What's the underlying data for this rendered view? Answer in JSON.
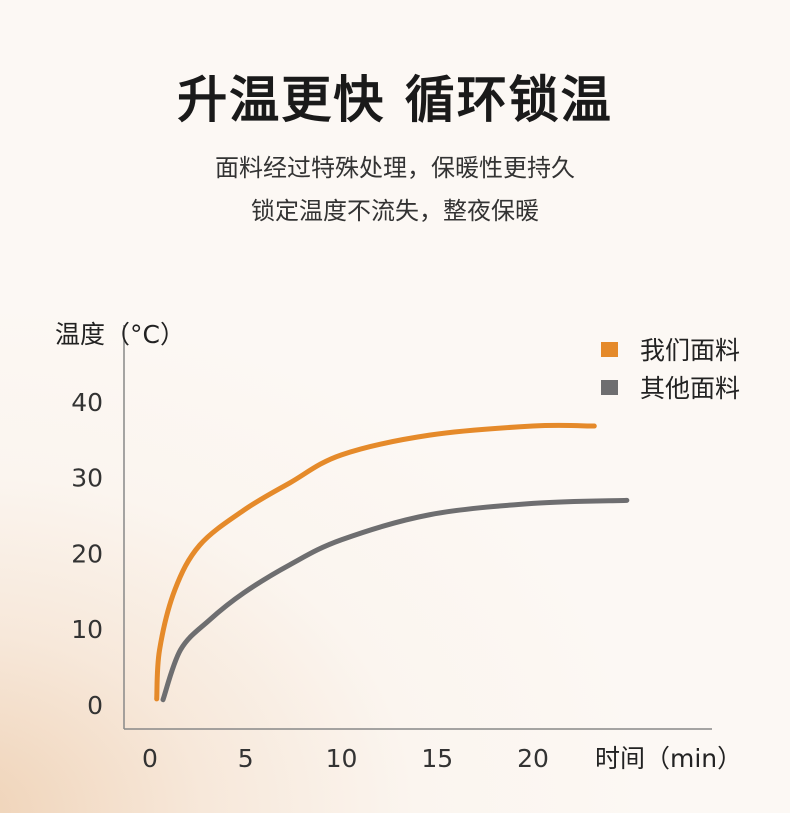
{
  "header": {
    "title": "升温更快 循环锁温",
    "subtitle_lines": [
      "面料经过特殊处理，保暖性更持久",
      "锁定温度不流失，整夜保暖"
    ]
  },
  "chart_data": {
    "type": "line",
    "title": "",
    "ylabel": "温度（°C）",
    "xlabel": "时间（min）",
    "xlim": [
      0,
      26
    ],
    "ylim": [
      0,
      45
    ],
    "x_ticks": [
      "0",
      "5",
      "10",
      "15",
      "20"
    ],
    "y_ticks": [
      "0",
      "10",
      "20",
      "30",
      "40"
    ],
    "grid": false,
    "legend_position": "top-right",
    "series": [
      {
        "name": "我们面料",
        "color": "#e58a2a",
        "points": [
          [
            0.35,
            0.8
          ],
          [
            0.5,
            7.3
          ],
          [
            1.3,
            15.2
          ],
          [
            2.6,
            21.1
          ],
          [
            4.9,
            25.7
          ],
          [
            7.3,
            29.3
          ],
          [
            10,
            33
          ],
          [
            14.6,
            35.6
          ],
          [
            20,
            36.8
          ],
          [
            23.2,
            36.8
          ]
        ]
      },
      {
        "name": "其他面料",
        "color": "#6e6e70",
        "points": [
          [
            0.68,
            0.7
          ],
          [
            1.6,
            7.3
          ],
          [
            3.1,
            11.2
          ],
          [
            4.9,
            14.8
          ],
          [
            7.3,
            18.5
          ],
          [
            10,
            21.8
          ],
          [
            14.6,
            25.1
          ],
          [
            20,
            26.6
          ],
          [
            24.9,
            27
          ]
        ]
      }
    ]
  }
}
